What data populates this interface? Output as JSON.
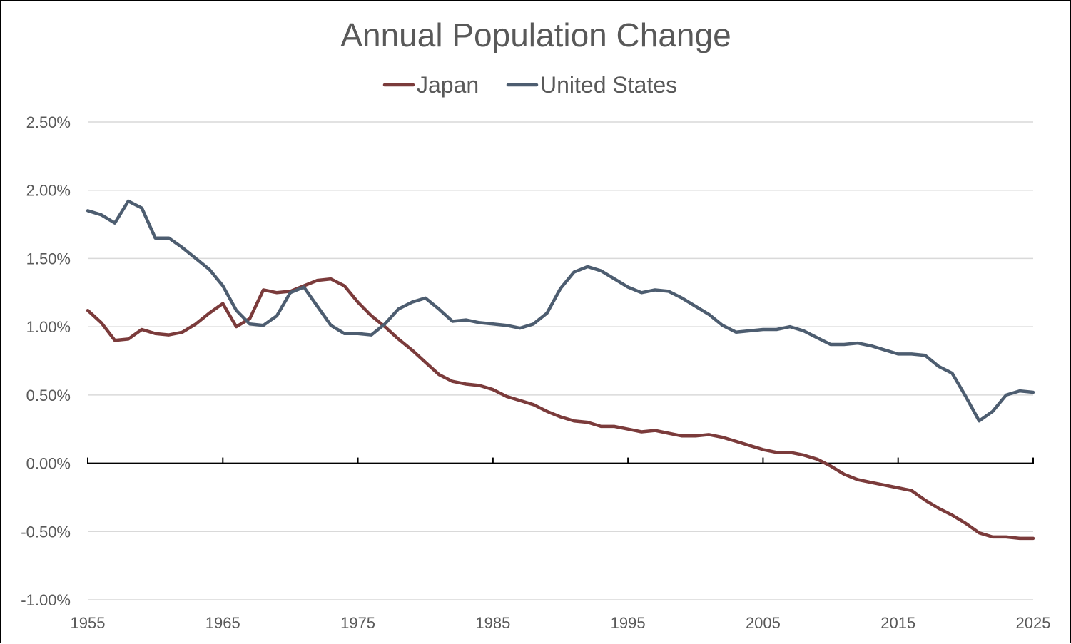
{
  "chart_data": {
    "type": "line",
    "title": "Annual Population Change",
    "xlabel": "",
    "ylabel": "",
    "xlim": [
      1955,
      2025
    ],
    "ylim": [
      -1.0,
      2.5
    ],
    "x_ticks": [
      "1955",
      "1965",
      "1975",
      "1985",
      "1995",
      "2005",
      "2015",
      "2025"
    ],
    "y_ticks": [
      "2.50%",
      "2.00%",
      "1.50%",
      "1.00%",
      "0.50%",
      "0.00%",
      "-0.50%",
      "-1.00%"
    ],
    "legend_position": "top-center",
    "x": [
      1955,
      1956,
      1957,
      1958,
      1959,
      1960,
      1961,
      1962,
      1963,
      1964,
      1965,
      1966,
      1967,
      1968,
      1969,
      1970,
      1971,
      1972,
      1973,
      1974,
      1975,
      1976,
      1977,
      1978,
      1979,
      1980,
      1981,
      1982,
      1983,
      1984,
      1985,
      1986,
      1987,
      1988,
      1989,
      1990,
      1991,
      1992,
      1993,
      1994,
      1995,
      1996,
      1997,
      1998,
      1999,
      2000,
      2001,
      2002,
      2003,
      2004,
      2005,
      2006,
      2007,
      2008,
      2009,
      2010,
      2011,
      2012,
      2013,
      2014,
      2015,
      2016,
      2017,
      2018,
      2019,
      2020,
      2021,
      2022,
      2023,
      2024,
      2025
    ],
    "series": [
      {
        "name": "Japan",
        "color": "#7b3b3b",
        "values": [
          1.12,
          1.03,
          0.9,
          0.91,
          0.98,
          0.95,
          0.94,
          0.96,
          1.02,
          1.1,
          1.17,
          1.0,
          1.06,
          1.27,
          1.25,
          1.26,
          1.3,
          1.34,
          1.35,
          1.3,
          1.18,
          1.08,
          1.0,
          0.91,
          0.83,
          0.74,
          0.65,
          0.6,
          0.58,
          0.57,
          0.54,
          0.49,
          0.46,
          0.43,
          0.38,
          0.34,
          0.31,
          0.3,
          0.27,
          0.27,
          0.25,
          0.23,
          0.24,
          0.22,
          0.2,
          0.2,
          0.21,
          0.19,
          0.16,
          0.13,
          0.1,
          0.08,
          0.08,
          0.06,
          0.03,
          -0.02,
          -0.08,
          -0.12,
          -0.14,
          -0.16,
          -0.18,
          -0.2,
          -0.27,
          -0.33,
          -0.38,
          -0.44,
          -0.51,
          -0.54,
          -0.54,
          -0.55,
          -0.55
        ]
      },
      {
        "name": "United States",
        "color": "#4d5d70",
        "values": [
          1.85,
          1.82,
          1.76,
          1.92,
          1.87,
          1.65,
          1.65,
          1.58,
          1.5,
          1.42,
          1.3,
          1.12,
          1.02,
          1.01,
          1.08,
          1.25,
          1.29,
          1.15,
          1.01,
          0.95,
          0.95,
          0.94,
          1.02,
          1.13,
          1.18,
          1.21,
          1.13,
          1.04,
          1.05,
          1.03,
          1.02,
          1.01,
          0.99,
          1.02,
          1.1,
          1.28,
          1.4,
          1.44,
          1.41,
          1.35,
          1.29,
          1.25,
          1.27,
          1.26,
          1.21,
          1.15,
          1.09,
          1.01,
          0.96,
          0.97,
          0.98,
          0.98,
          1.0,
          0.97,
          0.92,
          0.87,
          0.87,
          0.88,
          0.86,
          0.83,
          0.8,
          0.8,
          0.79,
          0.71,
          0.66,
          0.49,
          0.31,
          0.38,
          0.5,
          0.53,
          0.52
        ]
      }
    ]
  }
}
